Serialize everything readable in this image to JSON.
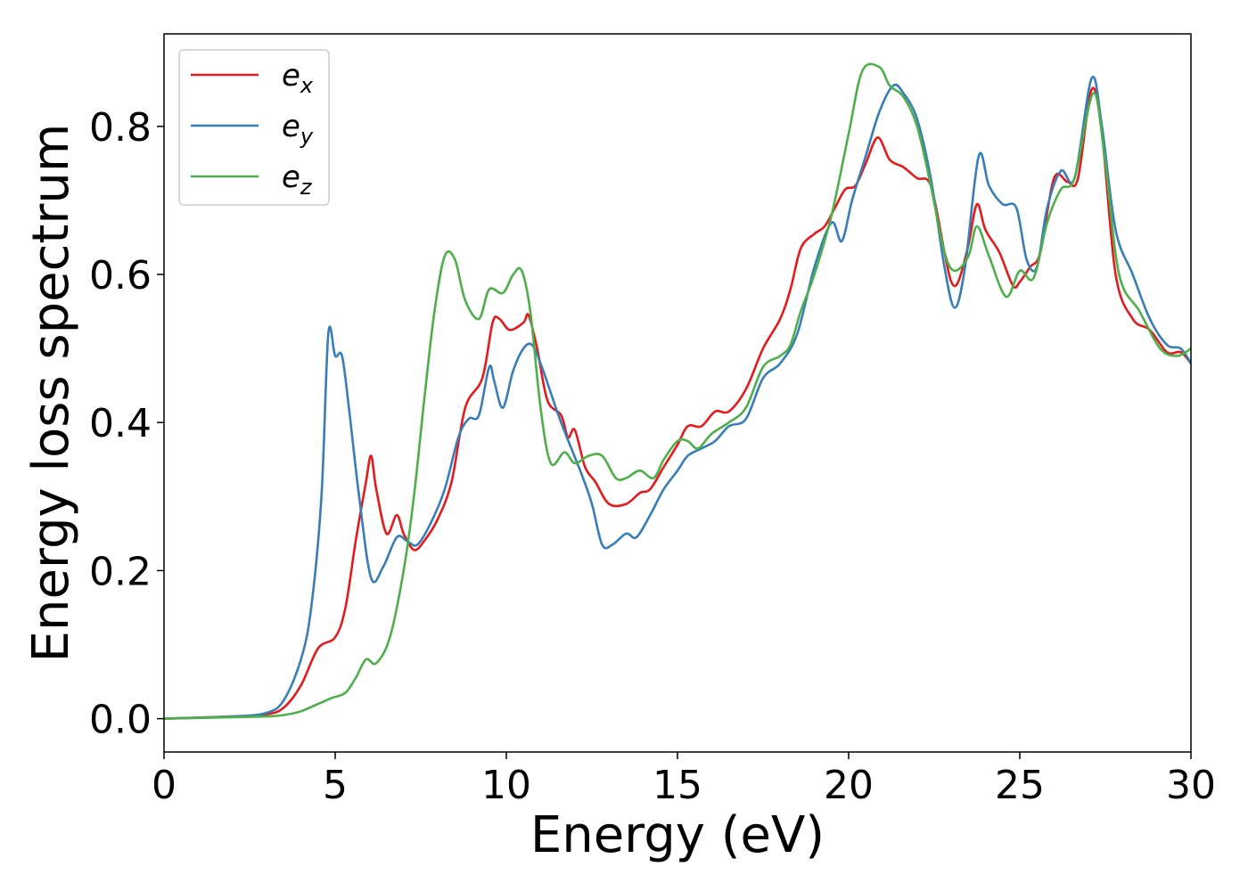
{
  "chart_data": {
    "type": "line",
    "title": "",
    "xlabel": "Energy (eV)",
    "ylabel": "Energy loss spectrum",
    "xlim": [
      0,
      30
    ],
    "ylim": [
      -0.045,
      0.925
    ],
    "xticks": [
      0,
      5,
      10,
      15,
      20,
      25,
      30
    ],
    "xtick_labels": [
      "0",
      "5",
      "10",
      "15",
      "20",
      "25",
      "30"
    ],
    "yticks": [
      0.0,
      0.2,
      0.4,
      0.6,
      0.8
    ],
    "ytick_labels": [
      "0.0",
      "0.2",
      "0.4",
      "0.6",
      "0.8"
    ],
    "grid": false,
    "legend_position": "top-left",
    "series": [
      {
        "name": "e_x",
        "legend_base": "e",
        "legend_sub": "x",
        "color": "#e41a1c",
        "points": [
          [
            0,
            0
          ],
          [
            2,
            0.003
          ],
          [
            3,
            0.006
          ],
          [
            3.5,
            0.015
          ],
          [
            4,
            0.045
          ],
          [
            4.5,
            0.095
          ],
          [
            5,
            0.11
          ],
          [
            5.3,
            0.15
          ],
          [
            5.6,
            0.24
          ],
          [
            5.9,
            0.32
          ],
          [
            6.05,
            0.355
          ],
          [
            6.2,
            0.31
          ],
          [
            6.5,
            0.25
          ],
          [
            6.8,
            0.275
          ],
          [
            7,
            0.25
          ],
          [
            7.3,
            0.228
          ],
          [
            7.6,
            0.24
          ],
          [
            8,
            0.27
          ],
          [
            8.4,
            0.32
          ],
          [
            8.8,
            0.42
          ],
          [
            9.3,
            0.46
          ],
          [
            9.6,
            0.535
          ],
          [
            9.8,
            0.54
          ],
          [
            10.1,
            0.525
          ],
          [
            10.5,
            0.535
          ],
          [
            10.65,
            0.545
          ],
          [
            10.9,
            0.5
          ],
          [
            11.2,
            0.43
          ],
          [
            11.6,
            0.41
          ],
          [
            11.8,
            0.38
          ],
          [
            12,
            0.39
          ],
          [
            12.3,
            0.34
          ],
          [
            12.6,
            0.32
          ],
          [
            13,
            0.29
          ],
          [
            13.5,
            0.29
          ],
          [
            13.9,
            0.305
          ],
          [
            14.2,
            0.31
          ],
          [
            14.6,
            0.34
          ],
          [
            15,
            0.37
          ],
          [
            15.3,
            0.395
          ],
          [
            15.7,
            0.395
          ],
          [
            16.1,
            0.415
          ],
          [
            16.5,
            0.415
          ],
          [
            17,
            0.445
          ],
          [
            17.5,
            0.5
          ],
          [
            18,
            0.54
          ],
          [
            18.3,
            0.58
          ],
          [
            18.6,
            0.635
          ],
          [
            19,
            0.655
          ],
          [
            19.3,
            0.665
          ],
          [
            19.6,
            0.69
          ],
          [
            19.9,
            0.715
          ],
          [
            20.2,
            0.72
          ],
          [
            20.5,
            0.75
          ],
          [
            20.85,
            0.785
          ],
          [
            21.2,
            0.755
          ],
          [
            21.6,
            0.745
          ],
          [
            22,
            0.73
          ],
          [
            22.4,
            0.72
          ],
          [
            22.8,
            0.63
          ],
          [
            23,
            0.59
          ],
          [
            23.2,
            0.59
          ],
          [
            23.5,
            0.64
          ],
          [
            23.75,
            0.695
          ],
          [
            24,
            0.66
          ],
          [
            24.4,
            0.63
          ],
          [
            24.8,
            0.585
          ],
          [
            25,
            0.59
          ],
          [
            25.3,
            0.61
          ],
          [
            25.6,
            0.63
          ],
          [
            26,
            0.73
          ],
          [
            26.4,
            0.725
          ],
          [
            26.7,
            0.73
          ],
          [
            27.1,
            0.85
          ],
          [
            27.4,
            0.79
          ],
          [
            27.8,
            0.6
          ],
          [
            28.3,
            0.54
          ],
          [
            28.8,
            0.525
          ],
          [
            29.3,
            0.495
          ],
          [
            29.7,
            0.495
          ],
          [
            30,
            0.48
          ]
        ]
      },
      {
        "name": "e_y",
        "legend_base": "e",
        "legend_sub": "y",
        "color": "#377eb8",
        "points": [
          [
            0,
            0
          ],
          [
            2,
            0.003
          ],
          [
            3,
            0.008
          ],
          [
            3.5,
            0.025
          ],
          [
            4,
            0.08
          ],
          [
            4.3,
            0.15
          ],
          [
            4.6,
            0.3
          ],
          [
            4.8,
            0.52
          ],
          [
            5.0,
            0.49
          ],
          [
            5.2,
            0.49
          ],
          [
            5.4,
            0.42
          ],
          [
            5.7,
            0.3
          ],
          [
            6.05,
            0.19
          ],
          [
            6.4,
            0.205
          ],
          [
            6.8,
            0.245
          ],
          [
            7.1,
            0.24
          ],
          [
            7.4,
            0.235
          ],
          [
            7.8,
            0.265
          ],
          [
            8.2,
            0.31
          ],
          [
            8.6,
            0.38
          ],
          [
            8.9,
            0.405
          ],
          [
            9.2,
            0.41
          ],
          [
            9.5,
            0.475
          ],
          [
            9.65,
            0.455
          ],
          [
            9.9,
            0.42
          ],
          [
            10.2,
            0.47
          ],
          [
            10.5,
            0.5
          ],
          [
            10.75,
            0.505
          ],
          [
            11,
            0.48
          ],
          [
            11.3,
            0.44
          ],
          [
            11.6,
            0.4
          ],
          [
            12.2,
            0.33
          ],
          [
            12.5,
            0.29
          ],
          [
            12.8,
            0.235
          ],
          [
            13.1,
            0.235
          ],
          [
            13.5,
            0.25
          ],
          [
            13.8,
            0.245
          ],
          [
            14.2,
            0.275
          ],
          [
            14.6,
            0.31
          ],
          [
            15,
            0.335
          ],
          [
            15.3,
            0.355
          ],
          [
            15.7,
            0.365
          ],
          [
            16.1,
            0.375
          ],
          [
            16.5,
            0.395
          ],
          [
            17,
            0.405
          ],
          [
            17.5,
            0.46
          ],
          [
            18,
            0.48
          ],
          [
            18.5,
            0.52
          ],
          [
            19,
            0.61
          ],
          [
            19.5,
            0.67
          ],
          [
            19.8,
            0.645
          ],
          [
            20.1,
            0.7
          ],
          [
            20.5,
            0.76
          ],
          [
            20.9,
            0.82
          ],
          [
            21.3,
            0.855
          ],
          [
            21.6,
            0.845
          ],
          [
            22,
            0.81
          ],
          [
            22.4,
            0.73
          ],
          [
            22.8,
            0.61
          ],
          [
            23.1,
            0.555
          ],
          [
            23.4,
            0.61
          ],
          [
            23.8,
            0.76
          ],
          [
            24.1,
            0.72
          ],
          [
            24.5,
            0.695
          ],
          [
            24.9,
            0.69
          ],
          [
            25.2,
            0.62
          ],
          [
            25.5,
            0.61
          ],
          [
            25.8,
            0.69
          ],
          [
            26.2,
            0.74
          ],
          [
            26.6,
            0.73
          ],
          [
            27.1,
            0.865
          ],
          [
            27.4,
            0.8
          ],
          [
            27.8,
            0.66
          ],
          [
            28.3,
            0.6
          ],
          [
            28.8,
            0.54
          ],
          [
            29.3,
            0.505
          ],
          [
            29.7,
            0.5
          ],
          [
            30,
            0.48
          ]
        ]
      },
      {
        "name": "e_z",
        "legend_base": "e",
        "legend_sub": "z",
        "color": "#4daf4a",
        "points": [
          [
            0,
            0
          ],
          [
            2,
            0.002
          ],
          [
            3,
            0.003
          ],
          [
            3.5,
            0.005
          ],
          [
            4,
            0.01
          ],
          [
            4.5,
            0.02
          ],
          [
            4.9,
            0.028
          ],
          [
            5.3,
            0.035
          ],
          [
            5.6,
            0.055
          ],
          [
            5.9,
            0.08
          ],
          [
            6.2,
            0.075
          ],
          [
            6.6,
            0.11
          ],
          [
            7,
            0.2
          ],
          [
            7.3,
            0.3
          ],
          [
            7.6,
            0.43
          ],
          [
            7.9,
            0.55
          ],
          [
            8.2,
            0.625
          ],
          [
            8.5,
            0.62
          ],
          [
            8.8,
            0.565
          ],
          [
            9.2,
            0.54
          ],
          [
            9.5,
            0.58
          ],
          [
            9.9,
            0.575
          ],
          [
            10.2,
            0.6
          ],
          [
            10.45,
            0.605
          ],
          [
            10.7,
            0.55
          ],
          [
            11,
            0.42
          ],
          [
            11.3,
            0.345
          ],
          [
            11.7,
            0.36
          ],
          [
            12,
            0.345
          ],
          [
            12.4,
            0.355
          ],
          [
            12.8,
            0.355
          ],
          [
            13.2,
            0.325
          ],
          [
            13.5,
            0.325
          ],
          [
            13.9,
            0.335
          ],
          [
            14.3,
            0.325
          ],
          [
            14.6,
            0.35
          ],
          [
            15,
            0.375
          ],
          [
            15.3,
            0.375
          ],
          [
            15.6,
            0.365
          ],
          [
            16,
            0.385
          ],
          [
            16.5,
            0.4
          ],
          [
            17,
            0.42
          ],
          [
            17.5,
            0.475
          ],
          [
            18,
            0.49
          ],
          [
            18.3,
            0.505
          ],
          [
            18.6,
            0.55
          ],
          [
            19,
            0.6
          ],
          [
            19.5,
            0.68
          ],
          [
            20,
            0.79
          ],
          [
            20.4,
            0.875
          ],
          [
            20.9,
            0.88
          ],
          [
            21.2,
            0.855
          ],
          [
            21.6,
            0.84
          ],
          [
            22,
            0.8
          ],
          [
            22.4,
            0.72
          ],
          [
            22.8,
            0.63
          ],
          [
            23.1,
            0.605
          ],
          [
            23.5,
            0.625
          ],
          [
            23.75,
            0.665
          ],
          [
            24.1,
            0.625
          ],
          [
            24.6,
            0.57
          ],
          [
            25,
            0.605
          ],
          [
            25.4,
            0.595
          ],
          [
            25.8,
            0.67
          ],
          [
            26.2,
            0.715
          ],
          [
            26.6,
            0.73
          ],
          [
            27.15,
            0.845
          ],
          [
            27.5,
            0.75
          ],
          [
            27.9,
            0.6
          ],
          [
            28.5,
            0.55
          ],
          [
            29.1,
            0.5
          ],
          [
            29.6,
            0.49
          ],
          [
            30,
            0.5
          ]
        ]
      }
    ]
  }
}
